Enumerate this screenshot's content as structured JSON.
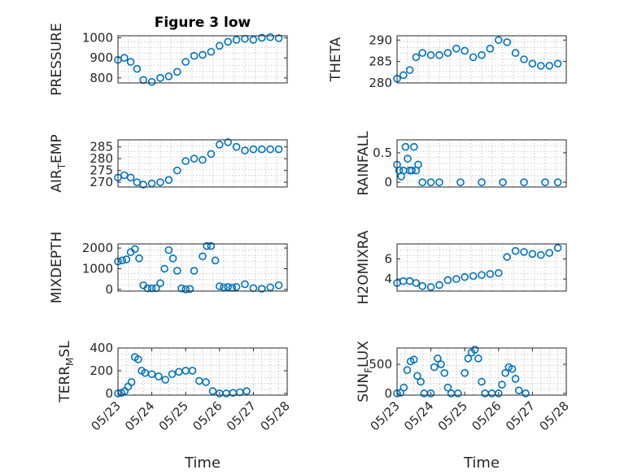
{
  "chart_data": [
    {
      "type": "scatter",
      "title": "Figure 3 low",
      "ylabel": "PRESSURE",
      "ylim": [
        775,
        1010
      ],
      "yticks": [
        800,
        900,
        1000
      ],
      "ytick_labels": [
        "800",
        "900",
        "1000"
      ],
      "grid": true,
      "x": [
        23.0,
        23.15,
        23.3,
        23.45,
        23.6,
        23.8,
        24.0,
        24.2,
        24.4,
        24.6,
        24.8,
        25.0,
        25.2,
        25.4,
        25.6,
        25.8,
        26.0,
        26.2,
        26.4,
        26.6,
        26.8
      ],
      "y": [
        890,
        900,
        880,
        845,
        790,
        780,
        800,
        808,
        830,
        880,
        910,
        915,
        930,
        960,
        980,
        990,
        995,
        990,
        1000,
        1003,
        998
      ]
    },
    {
      "type": "scatter",
      "ylabel": "THETA",
      "ylim": [
        280,
        291
      ],
      "yticks": [
        280,
        285,
        290
      ],
      "ytick_labels": [
        "280",
        "285",
        "290"
      ],
      "grid": true,
      "x": [
        23.0,
        23.15,
        23.3,
        23.45,
        23.6,
        23.8,
        24.0,
        24.2,
        24.4,
        24.6,
        24.8,
        25.0,
        25.2,
        25.4,
        25.6,
        25.8,
        26.0,
        26.2,
        26.4,
        26.6,
        26.8
      ],
      "y": [
        281,
        281.8,
        283,
        286,
        287,
        286.5,
        286.5,
        287,
        288,
        287.5,
        286,
        286.5,
        288,
        290,
        289.5,
        287,
        285.5,
        284.5,
        284,
        284,
        284.5
      ]
    },
    {
      "type": "scatter",
      "ylabel": "AIR_TEMP",
      "ylim": [
        268,
        288
      ],
      "yticks": [
        270,
        275,
        280,
        285
      ],
      "ytick_labels": [
        "270",
        "275",
        "280",
        "285"
      ],
      "grid": true,
      "x": [
        23.0,
        23.15,
        23.3,
        23.45,
        23.6,
        23.8,
        24.0,
        24.2,
        24.4,
        24.6,
        24.8,
        25.0,
        25.2,
        25.4,
        25.6,
        25.8,
        26.0,
        26.2,
        26.4,
        26.6,
        26.8
      ],
      "y": [
        272,
        273,
        272,
        270,
        269,
        269.5,
        270,
        271,
        275,
        279,
        280,
        279.5,
        282,
        286,
        287,
        285,
        283.5,
        284,
        284,
        284,
        284
      ]
    },
    {
      "type": "scatter",
      "ylabel": "RAINFALL",
      "ylim": [
        -0.08,
        0.72
      ],
      "yticks": [
        0,
        0.5
      ],
      "ytick_labels": [
        "0",
        "0.5"
      ],
      "grid": true,
      "x": [
        23.0,
        23.05,
        23.1,
        23.15,
        23.2,
        23.25,
        23.3,
        23.35,
        23.4,
        23.45,
        23.5,
        23.6,
        23.8,
        24.0,
        24.5,
        25.0,
        25.5,
        26.0,
        26.5,
        26.8
      ],
      "y": [
        0.3,
        0.2,
        0.1,
        0.2,
        0.6,
        0.4,
        0.2,
        0.2,
        0.6,
        0.2,
        0.3,
        0,
        0,
        0,
        0,
        0,
        0,
        0,
        0,
        0
      ]
    },
    {
      "type": "scatter",
      "ylabel": "MIXDEPTH",
      "ylim": [
        -80,
        2200
      ],
      "yticks": [
        0,
        1000,
        2000
      ],
      "ytick_labels": [
        "0",
        "1000",
        "2000"
      ],
      "grid": true,
      "x": [
        23.0,
        23.1,
        23.2,
        23.3,
        23.4,
        23.5,
        23.6,
        23.7,
        23.8,
        23.9,
        24.0,
        24.1,
        24.2,
        24.3,
        24.4,
        24.5,
        24.6,
        24.7,
        24.8,
        25.0,
        25.1,
        25.2,
        25.3,
        25.4,
        25.5,
        25.6,
        25.7,
        25.8,
        26.0,
        26.2,
        26.4,
        26.6,
        26.8
      ],
      "y": [
        1350,
        1400,
        1450,
        1800,
        1950,
        1500,
        200,
        50,
        50,
        60,
        300,
        1000,
        1900,
        1500,
        900,
        50,
        0,
        20,
        900,
        1600,
        2100,
        2100,
        1400,
        150,
        100,
        120,
        80,
        120,
        250,
        60,
        30,
        100,
        200
      ]
    },
    {
      "type": "scatter",
      "ylabel": "H2OMIXRA",
      "ylim": [
        2.8,
        7.5
      ],
      "yticks": [
        4,
        6
      ],
      "ytick_labels": [
        "4",
        "6"
      ],
      "grid": true,
      "x": [
        23.0,
        23.15,
        23.3,
        23.45,
        23.6,
        23.8,
        24.0,
        24.2,
        24.4,
        24.6,
        24.8,
        25.0,
        25.2,
        25.4,
        25.6,
        25.8,
        26.0,
        26.2,
        26.4,
        26.6,
        26.8
      ],
      "y": [
        3.6,
        3.8,
        3.8,
        3.6,
        3.3,
        3.2,
        3.4,
        3.9,
        4.0,
        4.2,
        4.3,
        4.4,
        4.5,
        4.6,
        6.2,
        6.8,
        6.7,
        6.5,
        6.4,
        6.6,
        7.1
      ]
    },
    {
      "type": "scatter",
      "ylabel": "TERR_MSL",
      "ylim": [
        -15,
        400
      ],
      "yticks": [
        0,
        200,
        400
      ],
      "ytick_labels": [
        "0",
        "200",
        "400"
      ],
      "grid": true,
      "xlabel": "Time",
      "xlim": [
        23.0,
        28.0
      ],
      "xticks": [
        23,
        24,
        25,
        26,
        27,
        28
      ],
      "xtick_labels": [
        "05/23",
        "05/24",
        "05/25",
        "05/26",
        "05/27",
        "05/28"
      ],
      "x": [
        23.0,
        23.1,
        23.2,
        23.3,
        23.4,
        23.5,
        23.6,
        23.7,
        23.8,
        24.0,
        24.2,
        24.4,
        24.6,
        24.8,
        25.0,
        25.2,
        25.4,
        25.6,
        25.8,
        26.0,
        26.2,
        26.4,
        26.6,
        26.8
      ],
      "y": [
        0,
        5,
        20,
        60,
        100,
        320,
        300,
        200,
        180,
        170,
        150,
        120,
        170,
        190,
        200,
        200,
        110,
        100,
        20,
        0,
        0,
        5,
        10,
        20
      ]
    },
    {
      "type": "scatter",
      "ylabel": "SUN_FLUX",
      "ylim": [
        -30,
        780
      ],
      "yticks": [
        0,
        500
      ],
      "ytick_labels": [
        "0",
        "500"
      ],
      "grid": true,
      "xlabel": "Time",
      "xlim": [
        23.0,
        28.0
      ],
      "xticks": [
        23,
        24,
        25,
        26,
        27,
        28
      ],
      "xtick_labels": [
        "05/23",
        "05/24",
        "05/25",
        "05/26",
        "05/27",
        "05/28"
      ],
      "x": [
        23.0,
        23.1,
        23.2,
        23.3,
        23.4,
        23.5,
        23.6,
        23.7,
        23.8,
        24.0,
        24.1,
        24.2,
        24.3,
        24.4,
        24.5,
        24.6,
        24.8,
        25.0,
        25.1,
        25.2,
        25.3,
        25.4,
        25.5,
        25.6,
        25.8,
        26.0,
        26.1,
        26.2,
        26.3,
        26.4,
        26.5,
        26.6,
        26.8
      ],
      "y": [
        0,
        10,
        100,
        400,
        550,
        580,
        300,
        200,
        0,
        0,
        450,
        600,
        500,
        350,
        100,
        0,
        0,
        350,
        600,
        700,
        750,
        600,
        200,
        0,
        0,
        0,
        150,
        350,
        450,
        420,
        250,
        50,
        0
      ]
    }
  ]
}
